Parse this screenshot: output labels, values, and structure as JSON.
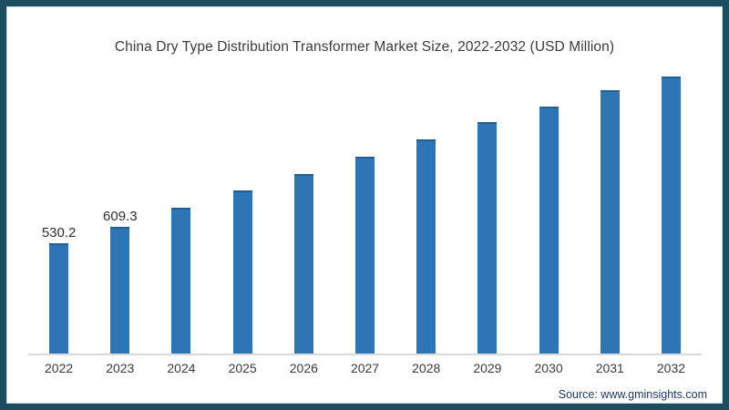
{
  "source": "Source: www.gminsights.com",
  "colors": {
    "frame": "#1D4E60",
    "inner_line": "#BFD8E4",
    "bar": "#2E75B6",
    "bar_top": "#255E91",
    "axis": "#D9D9D9",
    "title_text": "#3B3B3B",
    "tick_text": "#3A3A3A",
    "label_text": "#2F2F2F",
    "source_text": "#1F3864"
  },
  "chart_data": {
    "type": "bar",
    "title": "China Dry Type Distribution Transformer Market Size, 2022-2032 (USD Million)",
    "categories": [
      "2022",
      "2023",
      "2024",
      "2025",
      "2026",
      "2027",
      "2028",
      "2029",
      "2030",
      "2031",
      "2032"
    ],
    "values": [
      530.2,
      609.3,
      700,
      783,
      866,
      946,
      1029,
      1113,
      1190,
      1267,
      1333
    ],
    "data_labels": [
      "530.2",
      "609.3",
      "",
      "",
      "",
      "",
      "",
      "",
      "",
      "",
      ""
    ],
    "xlabel": "",
    "ylabel": "",
    "ylim": [
      0,
      1400
    ],
    "grid": false,
    "legend": false,
    "bar_color": "#2E75B6"
  }
}
